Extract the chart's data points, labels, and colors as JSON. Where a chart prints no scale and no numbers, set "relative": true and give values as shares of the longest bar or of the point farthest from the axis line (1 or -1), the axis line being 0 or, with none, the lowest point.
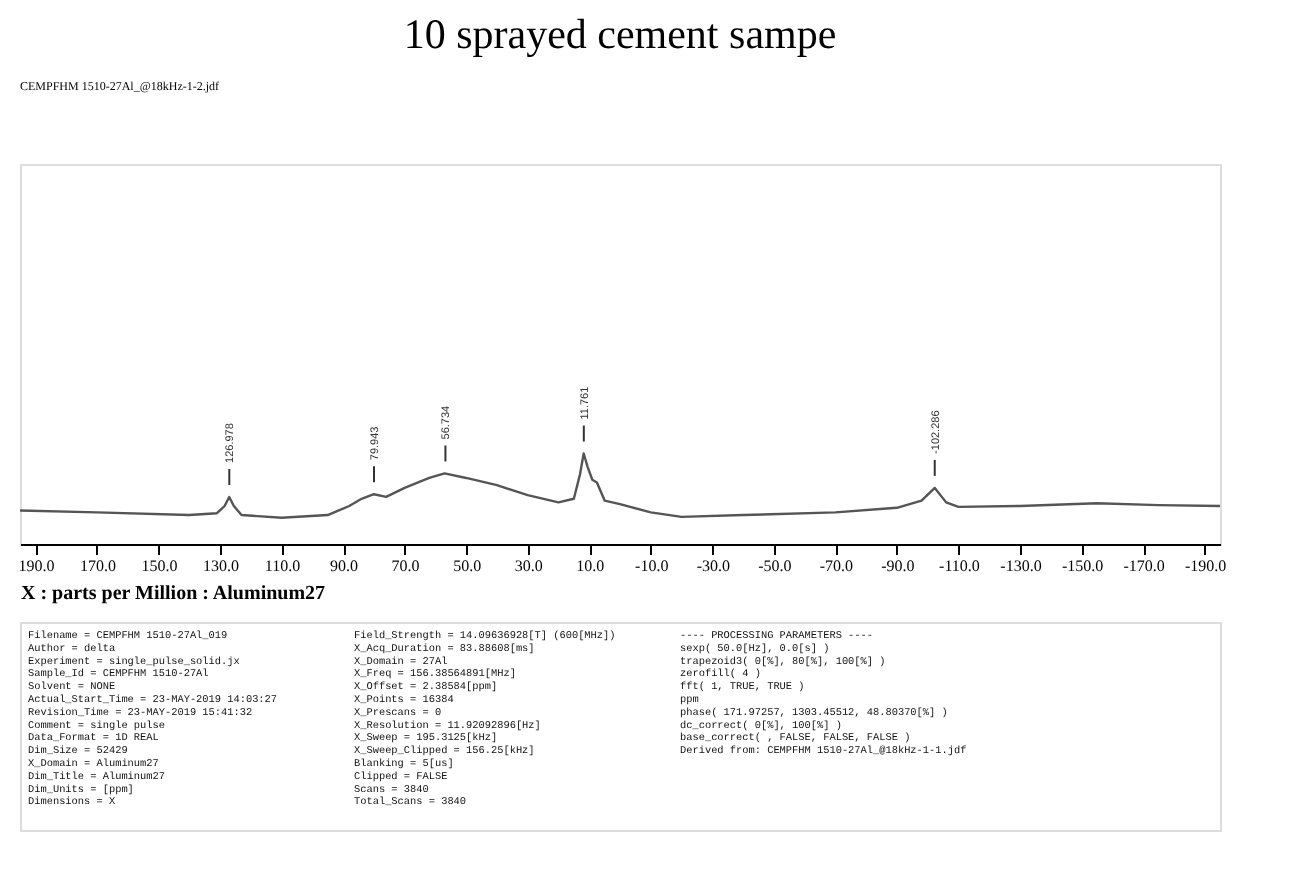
{
  "chart_data": {
    "type": "line",
    "title": "10 sprayed cement sampe",
    "xlabel": "X : parts per Million : Aluminum27",
    "relative": true,
    "marker": "none",
    "line_style": "solid",
    "grid": false,
    "tick_labels": "x",
    "x": [
      195,
      170,
      140,
      131,
      128.5,
      127,
      125.5,
      123,
      110,
      95,
      88,
      84,
      80,
      76,
      70,
      62,
      57,
      50,
      40,
      30,
      20,
      15,
      13,
      11.8,
      10.5,
      9,
      7.5,
      5,
      0,
      -10,
      -20,
      -40,
      -70,
      -90,
      -98,
      -102.3,
      -106,
      -110,
      -130,
      -155,
      -175,
      -195
    ],
    "series": [
      {
        "color": "#555555",
        "values": [
          0.37,
          0.35,
          0.32,
          0.34,
          0.42,
          0.52,
          0.42,
          0.32,
          0.29,
          0.32,
          0.42,
          0.5,
          0.55,
          0.52,
          0.62,
          0.73,
          0.78,
          0.73,
          0.65,
          0.54,
          0.46,
          0.5,
          0.77,
          1.0,
          0.85,
          0.71,
          0.68,
          0.48,
          0.44,
          0.35,
          0.3,
          0.32,
          0.35,
          0.4,
          0.48,
          0.62,
          0.46,
          0.41,
          0.42,
          0.45,
          0.43,
          0.42
        ]
      }
    ],
    "xlim": [
      195,
      -195
    ],
    "xticks": [
      {
        "value": 190,
        "label": "190.0"
      },
      {
        "value": 170,
        "label": "170.0"
      },
      {
        "value": 150,
        "label": "150.0"
      },
      {
        "value": 130,
        "label": "130.0"
      },
      {
        "value": 110,
        "label": "110.0"
      },
      {
        "value": 90,
        "label": "90.0"
      },
      {
        "value": 70,
        "label": "70.0"
      },
      {
        "value": 50,
        "label": "50.0"
      },
      {
        "value": 30,
        "label": "30.0"
      },
      {
        "value": 10,
        "label": "10.0"
      },
      {
        "value": -10,
        "label": "-10.0"
      },
      {
        "value": -30,
        "label": "-30.0"
      },
      {
        "value": -50,
        "label": "-50.0"
      },
      {
        "value": -70,
        "label": "-70.0"
      },
      {
        "value": -90,
        "label": "-90.0"
      },
      {
        "value": -110,
        "label": "-110.0"
      },
      {
        "value": -130,
        "label": "-130.0"
      },
      {
        "value": -150,
        "label": "-150.0"
      },
      {
        "value": -170,
        "label": "-170.0"
      },
      {
        "value": -190,
        "label": "-190.0"
      }
    ],
    "annotations": [
      "CEMPFHM 1510-27Al_@18kHz-1-2.jdf",
      {
        "text": "126.978",
        "x": 126.978,
        "y": 0.52
      },
      {
        "text": "79.943",
        "x": 79.943,
        "y": 0.55
      },
      {
        "text": "56.734",
        "x": 56.734,
        "y": 0.78
      },
      {
        "text": "11.761",
        "x": 11.761,
        "y": 1.0
      },
      {
        "text": "-102.286",
        "x": -102.286,
        "y": 0.62
      },
      "Filename = CEMPFHM 1510-27Al_019\nAuthor = delta\nExperiment = single_pulse_solid.jx\nSample_Id = CEMPFHM 1510-27Al\nSolvent = NONE\nActual_Start_Time = 23-MAY-2019 14:03:27\nRevision_Time = 23-MAY-2019 15:41:32\n\nComment = single pulse\nData_Format = 1D REAL\nDim_Size = 52429\nX_Domain = Aluminum27\nDim_Title = Aluminum27\nDim_Units = [ppm]\nDimensions = X",
      "Field_Strength = 14.09636928[T] (600[MHz])\nX_Acq_Duration = 83.88608[ms]\nX_Domain = 27Al\nX_Freq = 156.38564891[MHz]\nX_Offset = 2.38584[ppm]\nX_Points = 16384\nX_Prescans = 0\nX_Resolution = 11.92092896[Hz]\nX_Sweep = 195.3125[kHz]\nX_Sweep_Clipped = 156.25[kHz]\nBlanking = 5[us]\nClipped = FALSE\nScans = 3840\nTotal_Scans = 3840",
      "---- PROCESSING PARAMETERS ----\nsexp( 50.0[Hz], 0.0[s] )\ntrapezoid3( 0[%], 80[%], 100[%] )\nzerofill( 4 )\nfft( 1, TRUE, TRUE )\nppm\nphase( 171.97257, 1303.45512, 48.80370[%] )\ndc_correct( 0[%], 100[%] )\nbase_correct( , FALSE, FALSE, FALSE )\n\nDerived from: CEMPFHM 1510-27Al_@18kHz-1-1.jdf"
    ]
  }
}
